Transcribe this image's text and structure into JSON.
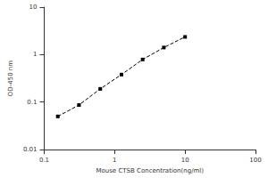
{
  "chart_data": {
    "type": "line",
    "x_label": "Mouse CTSB Concentration(ng/ml)",
    "y_label": "OD-450 nm",
    "x": [
      0.156,
      0.312,
      0.625,
      1.25,
      2.5,
      5,
      10
    ],
    "values": [
      0.05,
      0.087,
      0.19,
      0.38,
      0.79,
      1.41,
      2.36
    ],
    "color": "#000000",
    "marker": "square",
    "line_style": "dashed",
    "log": true,
    "xlim": [
      0.1,
      100
    ],
    "xticks": [
      0.1,
      1,
      10,
      100
    ],
    "ylim": [
      0.01,
      10
    ],
    "yticks": [
      0.01,
      0.1,
      1,
      10
    ],
    "grid": false
  }
}
